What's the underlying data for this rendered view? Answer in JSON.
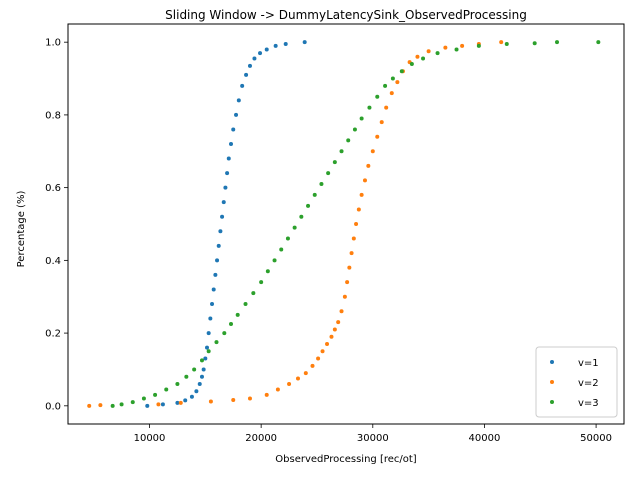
{
  "chart_data": {
    "type": "scatter",
    "title": "Sliding Window -> DummyLatencySink_ObservedProcessing",
    "xlabel": "ObservedProcessing [rec/ot]",
    "ylabel": "Percentage (%)",
    "xlim": [
      2700,
      52500
    ],
    "ylim": [
      -0.05,
      1.05
    ],
    "xticks": [
      10000,
      20000,
      30000,
      40000,
      50000
    ],
    "xtick_labels": [
      "10000",
      "20000",
      "30000",
      "40000",
      "50000"
    ],
    "yticks": [
      0.0,
      0.2,
      0.4,
      0.6,
      0.8,
      1.0
    ],
    "ytick_labels": [
      "0.0",
      "0.2",
      "0.4",
      "0.6",
      "0.8",
      "1.0"
    ],
    "grid": false,
    "legend_position": "bottom-right",
    "series": [
      {
        "name": "v=1",
        "color": "#1f77b4",
        "points": [
          [
            9800,
            0.0
          ],
          [
            11200,
            0.004
          ],
          [
            12500,
            0.008
          ],
          [
            13200,
            0.015
          ],
          [
            13800,
            0.025
          ],
          [
            14200,
            0.04
          ],
          [
            14500,
            0.06
          ],
          [
            14700,
            0.08
          ],
          [
            14850,
            0.1
          ],
          [
            15000,
            0.13
          ],
          [
            15150,
            0.16
          ],
          [
            15300,
            0.2
          ],
          [
            15450,
            0.24
          ],
          [
            15600,
            0.28
          ],
          [
            15750,
            0.32
          ],
          [
            15900,
            0.36
          ],
          [
            16050,
            0.4
          ],
          [
            16200,
            0.44
          ],
          [
            16350,
            0.48
          ],
          [
            16500,
            0.52
          ],
          [
            16650,
            0.56
          ],
          [
            16800,
            0.6
          ],
          [
            16950,
            0.64
          ],
          [
            17100,
            0.68
          ],
          [
            17300,
            0.72
          ],
          [
            17500,
            0.76
          ],
          [
            17750,
            0.8
          ],
          [
            18000,
            0.84
          ],
          [
            18300,
            0.88
          ],
          [
            18650,
            0.91
          ],
          [
            19000,
            0.935
          ],
          [
            19400,
            0.955
          ],
          [
            19900,
            0.97
          ],
          [
            20500,
            0.98
          ],
          [
            21300,
            0.99
          ],
          [
            22200,
            0.995
          ],
          [
            23900,
            1.0
          ]
        ]
      },
      {
        "name": "v=2",
        "color": "#ff7f0e",
        "points": [
          [
            4600,
            0.0
          ],
          [
            5600,
            0.002
          ],
          [
            10800,
            0.004
          ],
          [
            12800,
            0.008
          ],
          [
            15500,
            0.012
          ],
          [
            17500,
            0.016
          ],
          [
            19000,
            0.02
          ],
          [
            20500,
            0.03
          ],
          [
            21500,
            0.045
          ],
          [
            22500,
            0.06
          ],
          [
            23300,
            0.075
          ],
          [
            24000,
            0.09
          ],
          [
            24600,
            0.11
          ],
          [
            25100,
            0.13
          ],
          [
            25500,
            0.15
          ],
          [
            25900,
            0.17
          ],
          [
            26300,
            0.19
          ],
          [
            26600,
            0.21
          ],
          [
            26900,
            0.23
          ],
          [
            27200,
            0.26
          ],
          [
            27500,
            0.3
          ],
          [
            27700,
            0.34
          ],
          [
            27900,
            0.38
          ],
          [
            28100,
            0.42
          ],
          [
            28300,
            0.46
          ],
          [
            28500,
            0.5
          ],
          [
            28750,
            0.54
          ],
          [
            29000,
            0.58
          ],
          [
            29300,
            0.62
          ],
          [
            29600,
            0.66
          ],
          [
            30000,
            0.7
          ],
          [
            30400,
            0.74
          ],
          [
            30800,
            0.78
          ],
          [
            31200,
            0.82
          ],
          [
            31700,
            0.86
          ],
          [
            32200,
            0.89
          ],
          [
            32700,
            0.92
          ],
          [
            33300,
            0.945
          ],
          [
            34000,
            0.96
          ],
          [
            35000,
            0.975
          ],
          [
            36500,
            0.985
          ],
          [
            38000,
            0.99
          ],
          [
            39500,
            0.995
          ],
          [
            41500,
            1.0
          ]
        ]
      },
      {
        "name": "v=3",
        "color": "#2ca02c",
        "points": [
          [
            6700,
            0.0
          ],
          [
            7500,
            0.004
          ],
          [
            8500,
            0.01
          ],
          [
            9500,
            0.02
          ],
          [
            10500,
            0.03
          ],
          [
            11500,
            0.045
          ],
          [
            12500,
            0.06
          ],
          [
            13300,
            0.08
          ],
          [
            14000,
            0.1
          ],
          [
            14700,
            0.125
          ],
          [
            15300,
            0.15
          ],
          [
            16000,
            0.175
          ],
          [
            16700,
            0.2
          ],
          [
            17300,
            0.225
          ],
          [
            17900,
            0.25
          ],
          [
            18600,
            0.28
          ],
          [
            19300,
            0.31
          ],
          [
            20000,
            0.34
          ],
          [
            20600,
            0.37
          ],
          [
            21200,
            0.4
          ],
          [
            21800,
            0.43
          ],
          [
            22400,
            0.46
          ],
          [
            23000,
            0.49
          ],
          [
            23600,
            0.52
          ],
          [
            24200,
            0.55
          ],
          [
            24800,
            0.58
          ],
          [
            25400,
            0.61
          ],
          [
            26000,
            0.64
          ],
          [
            26600,
            0.67
          ],
          [
            27200,
            0.7
          ],
          [
            27800,
            0.73
          ],
          [
            28400,
            0.76
          ],
          [
            29000,
            0.79
          ],
          [
            29700,
            0.82
          ],
          [
            30400,
            0.85
          ],
          [
            31100,
            0.88
          ],
          [
            31800,
            0.9
          ],
          [
            32600,
            0.92
          ],
          [
            33500,
            0.94
          ],
          [
            34500,
            0.955
          ],
          [
            35800,
            0.97
          ],
          [
            37500,
            0.98
          ],
          [
            39500,
            0.99
          ],
          [
            42000,
            0.995
          ],
          [
            44500,
            0.997
          ],
          [
            46500,
            1.0
          ],
          [
            50200,
            1.0
          ]
        ]
      }
    ]
  }
}
